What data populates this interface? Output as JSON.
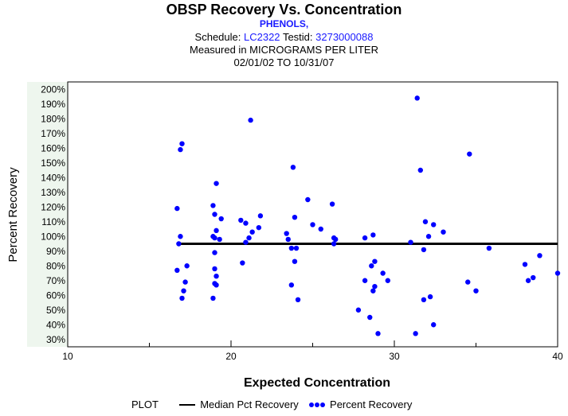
{
  "header": {
    "title": "OBSP Recovery Vs. Concentration",
    "subtitle": "PHENOLS,",
    "schedule_label": "Schedule:",
    "schedule_value": "LC2322",
    "testid_label": "Testid:",
    "testid_value": "3273000088",
    "measured": "Measured in  MICROGRAMS PER LITER",
    "date_range": "02/01/02 TO 10/31/07"
  },
  "legend": {
    "title": "PLOT",
    "median_label": "Median Pct Recovery",
    "points_label": "Percent Recovery"
  },
  "colors": {
    "points": "#0000ff",
    "median_line": "#000000",
    "ytick_band": "#eef6ee",
    "header_blue": "#1a1aff"
  },
  "chart_data": {
    "type": "scatter",
    "xlabel": "Expected Concentration",
    "ylabel": "Percent Recovery",
    "xlim": [
      10,
      40
    ],
    "ylim": [
      25,
      205
    ],
    "x_ticks": [
      "10",
      "20",
      "30",
      "40"
    ],
    "y_ticks": [
      "30%",
      "40%",
      "50%",
      "60%",
      "70%",
      "80%",
      "90%",
      "100%",
      "110%",
      "120%",
      "130%",
      "140%",
      "150%",
      "160%",
      "170%",
      "180%",
      "190%",
      "200%"
    ],
    "median": {
      "name": "Median Pct Recovery",
      "y": 95,
      "x_range": [
        16.7,
        40
      ]
    },
    "series": [
      {
        "name": "Percent Recovery",
        "points": [
          [
            16.7,
            119
          ],
          [
            16.7,
            77
          ],
          [
            16.8,
            95
          ],
          [
            16.9,
            159
          ],
          [
            17.0,
            163
          ],
          [
            16.9,
            100
          ],
          [
            17.0,
            58
          ],
          [
            17.1,
            63
          ],
          [
            17.2,
            69
          ],
          [
            17.3,
            80
          ],
          [
            18.9,
            121
          ],
          [
            19.0,
            115
          ],
          [
            19.1,
            136
          ],
          [
            18.9,
            100
          ],
          [
            19.0,
            99
          ],
          [
            19.1,
            104
          ],
          [
            19.3,
            98
          ],
          [
            19.4,
            112
          ],
          [
            19.0,
            89
          ],
          [
            19.0,
            78
          ],
          [
            19.0,
            68
          ],
          [
            19.1,
            73
          ],
          [
            19.1,
            67
          ],
          [
            18.9,
            58
          ],
          [
            20.6,
            111
          ],
          [
            20.7,
            82
          ],
          [
            20.9,
            109
          ],
          [
            20.9,
            96
          ],
          [
            21.1,
            99
          ],
          [
            21.2,
            179
          ],
          [
            21.3,
            103
          ],
          [
            21.7,
            106
          ],
          [
            21.8,
            114
          ],
          [
            23.4,
            102
          ],
          [
            23.5,
            98
          ],
          [
            23.7,
            92
          ],
          [
            23.7,
            67
          ],
          [
            23.8,
            147
          ],
          [
            23.9,
            113
          ],
          [
            23.9,
            83
          ],
          [
            24.0,
            92
          ],
          [
            24.1,
            57
          ],
          [
            24.7,
            125
          ],
          [
            25.0,
            108
          ],
          [
            25.5,
            105
          ],
          [
            26.2,
            122
          ],
          [
            26.3,
            99
          ],
          [
            26.4,
            98
          ],
          [
            26.3,
            95
          ],
          [
            27.8,
            50
          ],
          [
            28.2,
            99
          ],
          [
            28.2,
            70
          ],
          [
            28.5,
            45
          ],
          [
            28.6,
            80
          ],
          [
            28.7,
            101
          ],
          [
            28.7,
            63
          ],
          [
            28.8,
            66
          ],
          [
            28.8,
            83
          ],
          [
            29.0,
            34
          ],
          [
            29.3,
            75
          ],
          [
            29.6,
            70
          ],
          [
            31.0,
            96
          ],
          [
            31.3,
            34
          ],
          [
            31.4,
            194
          ],
          [
            31.6,
            145
          ],
          [
            31.8,
            91
          ],
          [
            31.8,
            57
          ],
          [
            31.9,
            110
          ],
          [
            32.1,
            100
          ],
          [
            32.2,
            59
          ],
          [
            32.4,
            108
          ],
          [
            32.4,
            40
          ],
          [
            33.0,
            103
          ],
          [
            34.5,
            69
          ],
          [
            34.6,
            156
          ],
          [
            35.0,
            63
          ],
          [
            35.8,
            92
          ],
          [
            38.0,
            81
          ],
          [
            38.2,
            70
          ],
          [
            38.5,
            72
          ],
          [
            38.9,
            87
          ],
          [
            40.0,
            75
          ]
        ]
      }
    ]
  }
}
